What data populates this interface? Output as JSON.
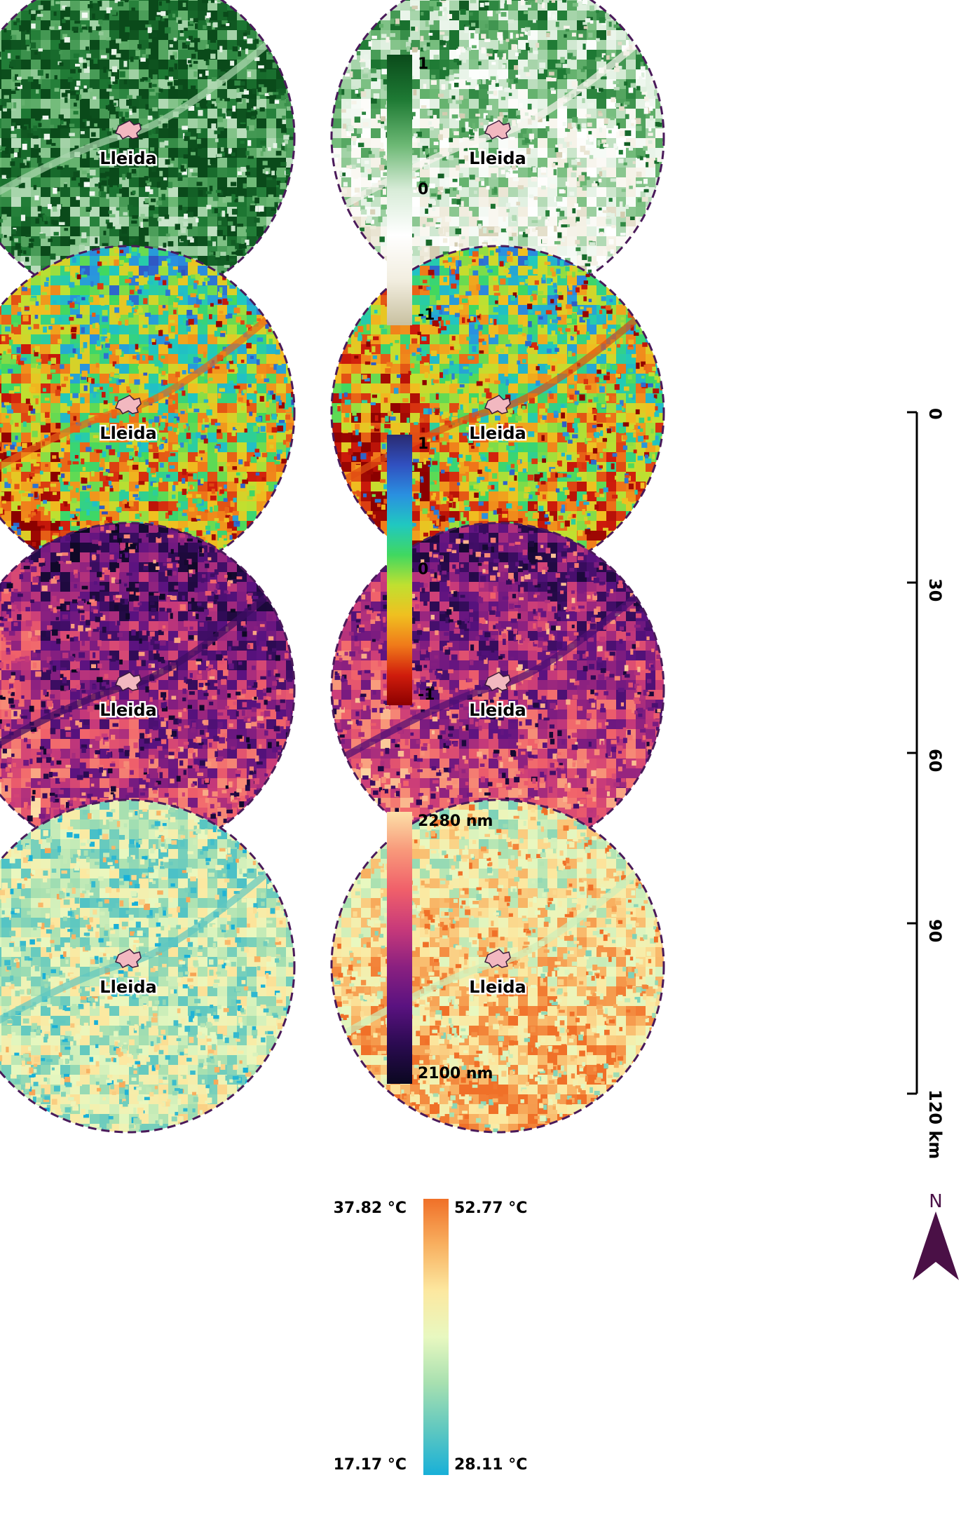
{
  "place_label": "Lleida",
  "colors": {
    "boundary": "#4a1a5a",
    "city_fill": "#f2b8c0",
    "city_stroke": "#3a1a3a",
    "scale_bar": "#000000",
    "north_arrow": "#4a1046"
  },
  "panels": [
    {
      "row": 1,
      "column": "left",
      "variable": "index-1",
      "palette": "ndvi",
      "mean": 0.82,
      "city": "Lleida"
    },
    {
      "row": 1,
      "column": "right",
      "variable": "index-1",
      "palette": "ndvi",
      "mean": 0.48,
      "city": "Lleida"
    },
    {
      "row": 2,
      "column": "left",
      "variable": "index-2",
      "palette": "spectral",
      "mean": 0.45,
      "city": "Lleida"
    },
    {
      "row": 2,
      "column": "right",
      "variable": "index-2",
      "palette": "spectral",
      "mean": 0.42,
      "city": "Lleida"
    },
    {
      "row": 3,
      "column": "left",
      "variable": "wavelength",
      "palette": "magma",
      "mean": 0.45,
      "city": "Lleida"
    },
    {
      "row": 3,
      "column": "right",
      "variable": "wavelength",
      "palette": "magma",
      "mean": 0.5,
      "city": "Lleida"
    },
    {
      "row": 4,
      "column": "left",
      "variable": "temperature",
      "palette": "temp",
      "mean": 0.42,
      "city": "Lleida"
    },
    {
      "row": 4,
      "column": "right",
      "variable": "temperature",
      "palette": "temp",
      "mean": 0.68,
      "city": "Lleida"
    }
  ],
  "palettes": {
    "ndvi": [
      "#c8c0a0",
      "#f2eee0",
      "#ffffff",
      "#d8ecd8",
      "#6cb874",
      "#1e7a34",
      "#0a4a1a"
    ],
    "spectral": [
      "#8b0000",
      "#d01c0c",
      "#f07a1a",
      "#f0c020",
      "#c0e030",
      "#40d860",
      "#20c8c0",
      "#2a90e0",
      "#3050c0",
      "#2a2a70"
    ],
    "magma": [
      "#0a0820",
      "#2a0a50",
      "#5a1280",
      "#8a2080",
      "#c83a7a",
      "#f0606a",
      "#f8987a",
      "#fce0a8"
    ],
    "temp": [
      "#18b0d8",
      "#60c8c0",
      "#a8e0b0",
      "#e8f8c0",
      "#fce8a0",
      "#f8b060",
      "#f07028"
    ]
  },
  "colorbars": [
    {
      "palette": "ndvi",
      "top_label": "1",
      "mid_label": "0",
      "bottom_label": "-1"
    },
    {
      "palette": "spectral",
      "top_label": "1",
      "mid_label": "0",
      "bottom_label": "-1"
    },
    {
      "palette": "magma",
      "top_label": "2280 nm",
      "bottom_label": "2100 nm"
    },
    {
      "palette": "temp",
      "top_label": "52.77 °C",
      "bottom_label": "28.11 °C",
      "left_top_label": "37.82 °C",
      "left_bottom_label": "17.17 °C"
    }
  ],
  "scale_bar": {
    "ticks": [
      "0",
      "30",
      "60",
      "90",
      "120 km"
    ]
  },
  "north_label": "N"
}
